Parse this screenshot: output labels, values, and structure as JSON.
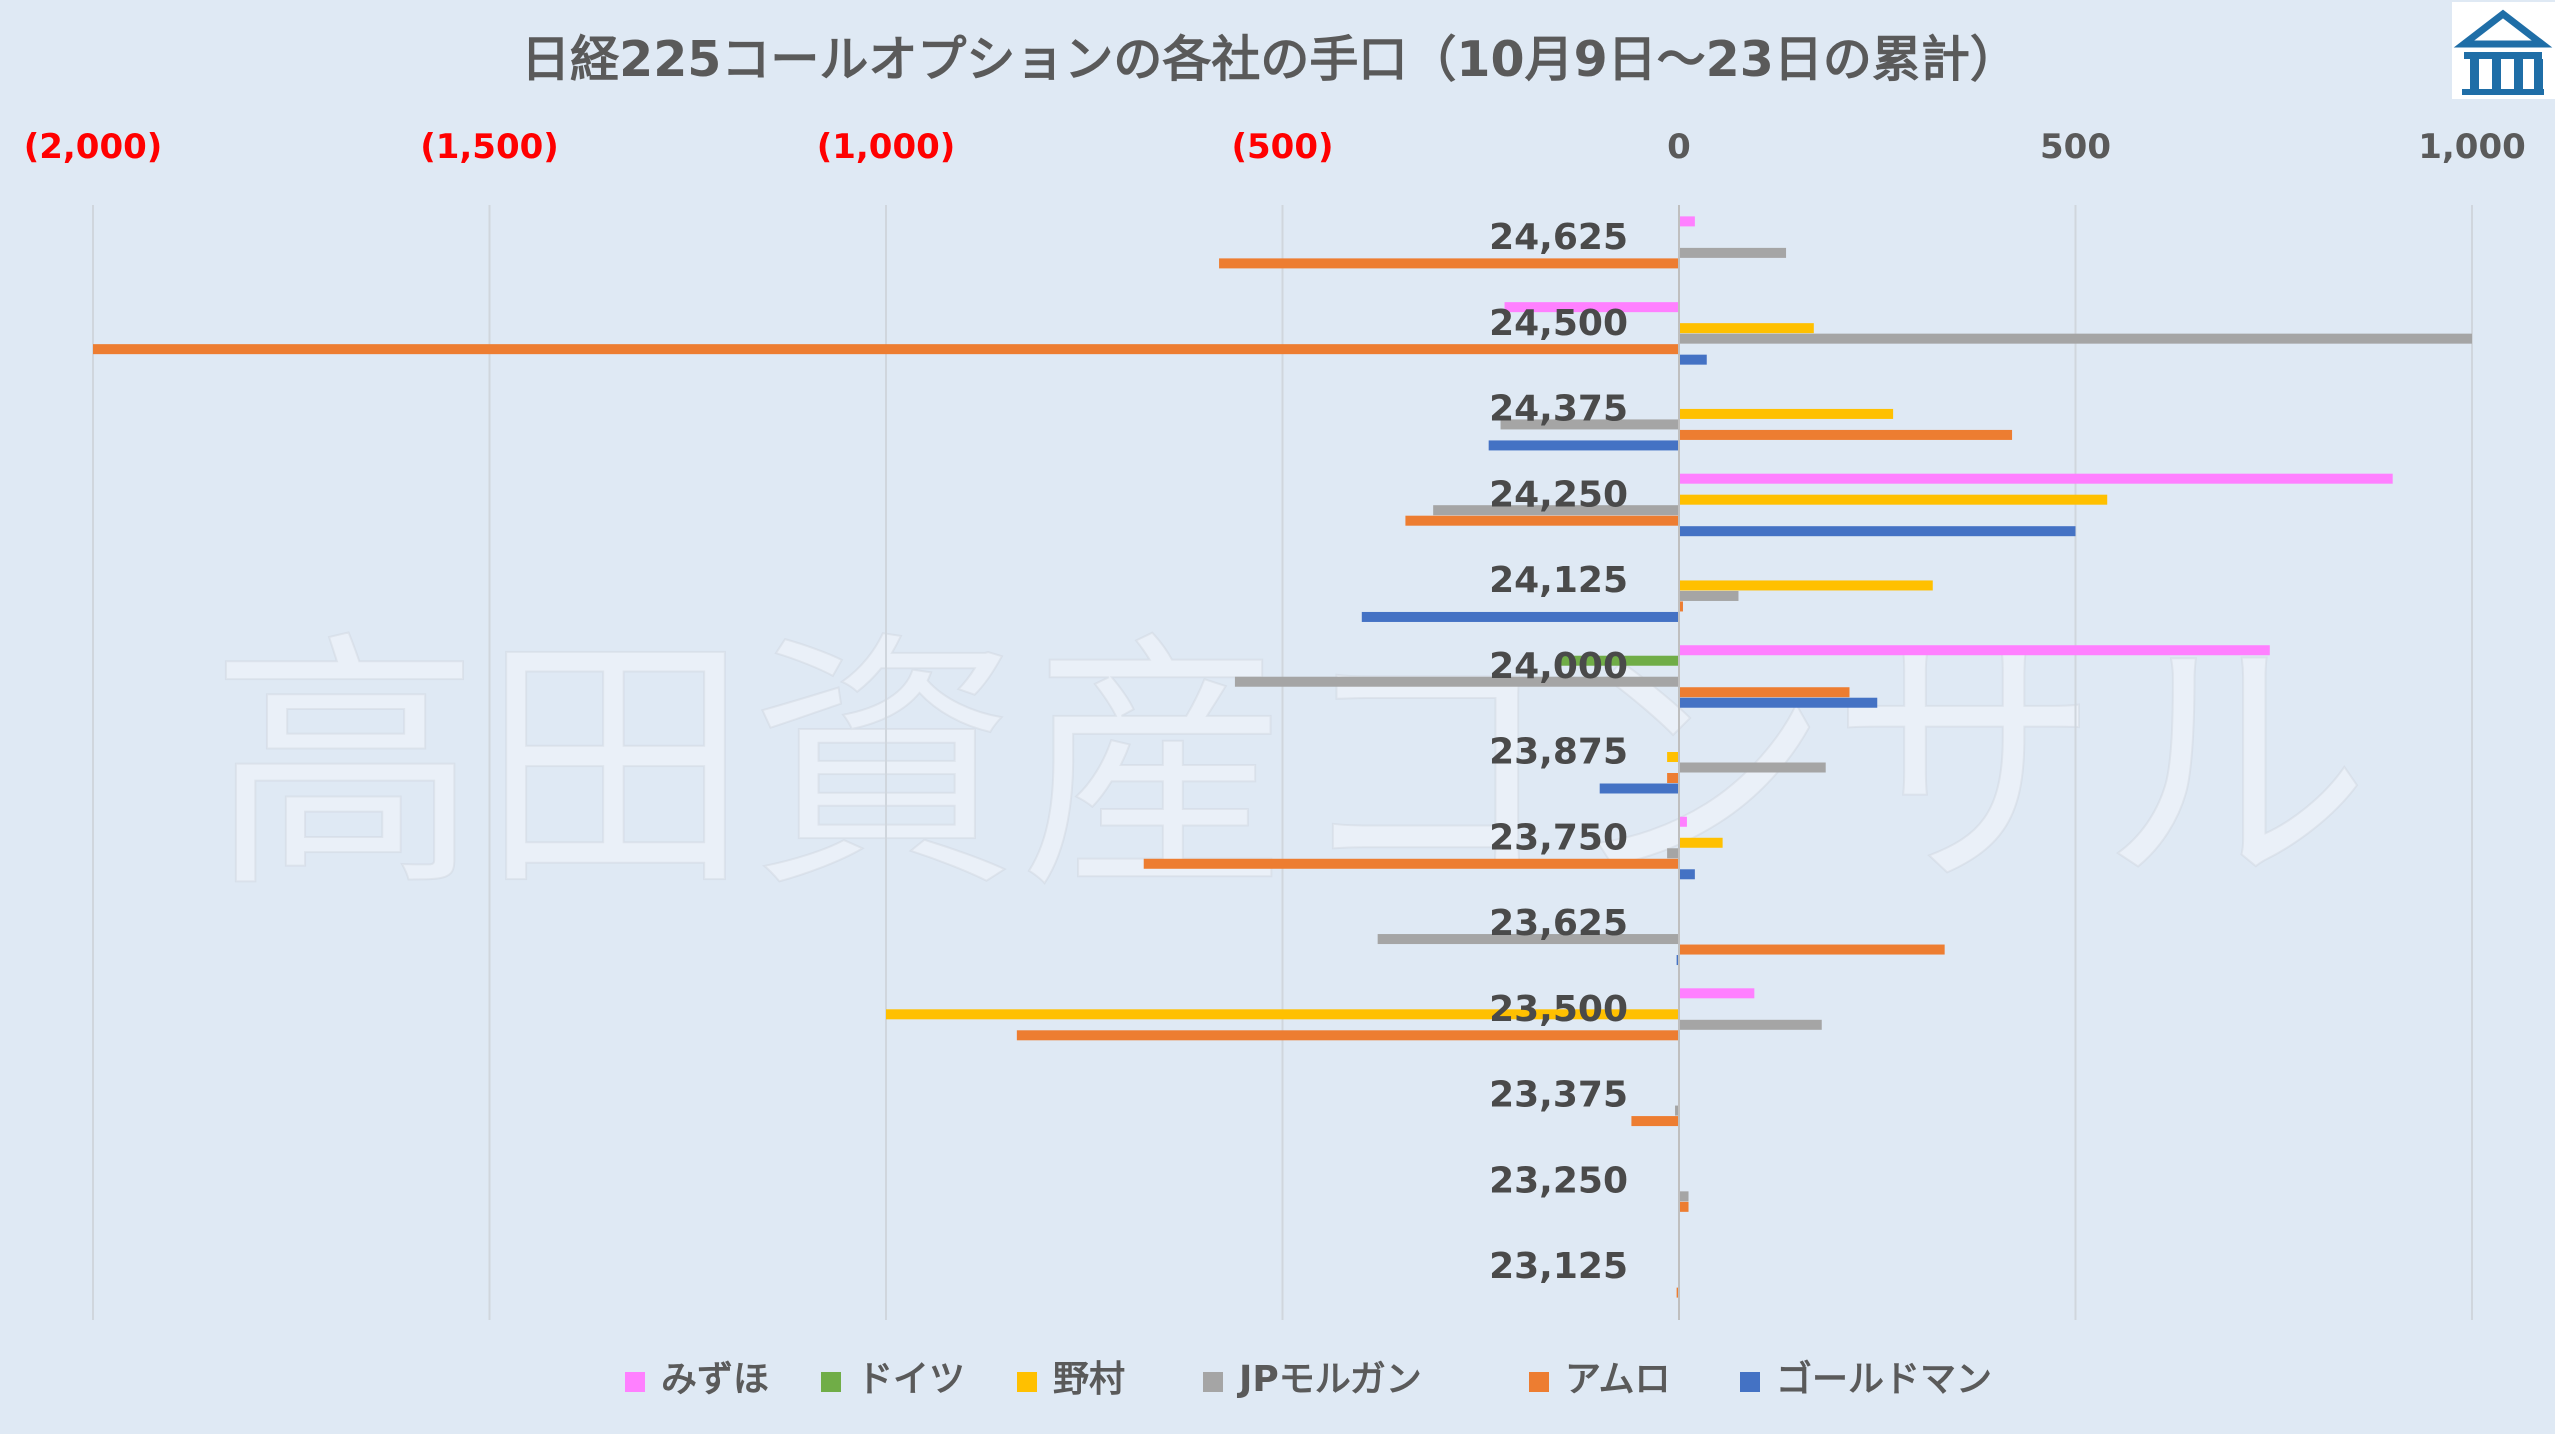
{
  "watermark": "高田資産コンサル",
  "logo": {
    "name": "building-logo-icon",
    "color": "#1f6ea7"
  },
  "chart_data": {
    "type": "bar",
    "orientation": "horizontal",
    "title": "日経225コールオプションの各社の手口（10月9日〜23日の累計）",
    "xlim": [
      -2000,
      1000
    ],
    "x_ticks": [
      {
        "value": -2000,
        "label": "(2,000)"
      },
      {
        "value": -1500,
        "label": "(1,500)"
      },
      {
        "value": -1000,
        "label": "(1,000)"
      },
      {
        "value": -500,
        "label": "(500)"
      },
      {
        "value": 0,
        "label": "0"
      },
      {
        "value": 500,
        "label": "500"
      },
      {
        "value": 1000,
        "label": "1,000"
      }
    ],
    "grid": true,
    "legend_position": "bottom",
    "categories": [
      "24,625",
      "24,500",
      "24,375",
      "24,250",
      "24,125",
      "24,000",
      "23,875",
      "23,750",
      "23,625",
      "23,500",
      "23,375",
      "23,250",
      "23,125"
    ],
    "series": [
      {
        "name": "みずほ",
        "color": "#ff80ff",
        "values": [
          20,
          -220,
          0,
          900,
          0,
          745,
          0,
          10,
          0,
          95,
          0,
          0,
          0
        ]
      },
      {
        "name": "ドイツ",
        "color": "#70ad47",
        "values": [
          0,
          0,
          0,
          0,
          0,
          -150,
          0,
          0,
          0,
          0,
          0,
          0,
          0
        ]
      },
      {
        "name": "野村",
        "color": "#ffc000",
        "values": [
          0,
          170,
          270,
          540,
          320,
          0,
          -15,
          55,
          0,
          -1000,
          0,
          0,
          0
        ]
      },
      {
        "name": "JPモルガン",
        "color": "#a5a5a5",
        "values": [
          135,
          1000,
          -225,
          -310,
          75,
          -560,
          185,
          -15,
          -380,
          180,
          -5,
          12,
          0
        ]
      },
      {
        "name": "アムロ",
        "color": "#ed7d31",
        "values": [
          -580,
          -2000,
          420,
          -345,
          5,
          215,
          -15,
          -675,
          335,
          -835,
          -60,
          12,
          -3
        ]
      },
      {
        "name": "ゴールドマン",
        "color": "#4472c4",
        "values": [
          0,
          35,
          -240,
          500,
          -400,
          250,
          -100,
          20,
          -3,
          0,
          0,
          0,
          0
        ]
      }
    ]
  }
}
